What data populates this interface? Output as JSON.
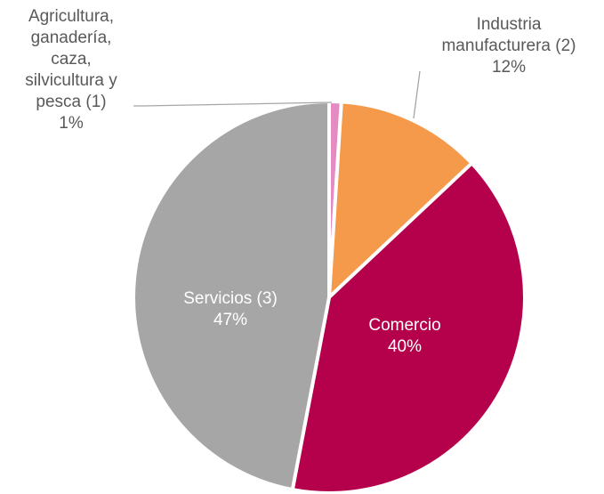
{
  "chart_data": {
    "type": "pie",
    "title": "",
    "slices": [
      {
        "label_lines": [
          "Agricultura,",
          "ganadería,",
          "caza,",
          "silvicultura y",
          "pesca (1)"
        ],
        "percent_label": "1%",
        "value": 1,
        "color": "#E48BC2"
      },
      {
        "label_lines": [
          "Industria",
          "manufacturera (2)"
        ],
        "percent_label": "12%",
        "value": 12,
        "color": "#F59A4A"
      },
      {
        "label_lines": [
          "Comercio"
        ],
        "percent_label": "40%",
        "value": 40,
        "color": "#B5004B"
      },
      {
        "label_lines": [
          "Servicios (3)"
        ],
        "percent_label": "47%",
        "value": 47,
        "color": "#A6A6A6"
      }
    ]
  }
}
